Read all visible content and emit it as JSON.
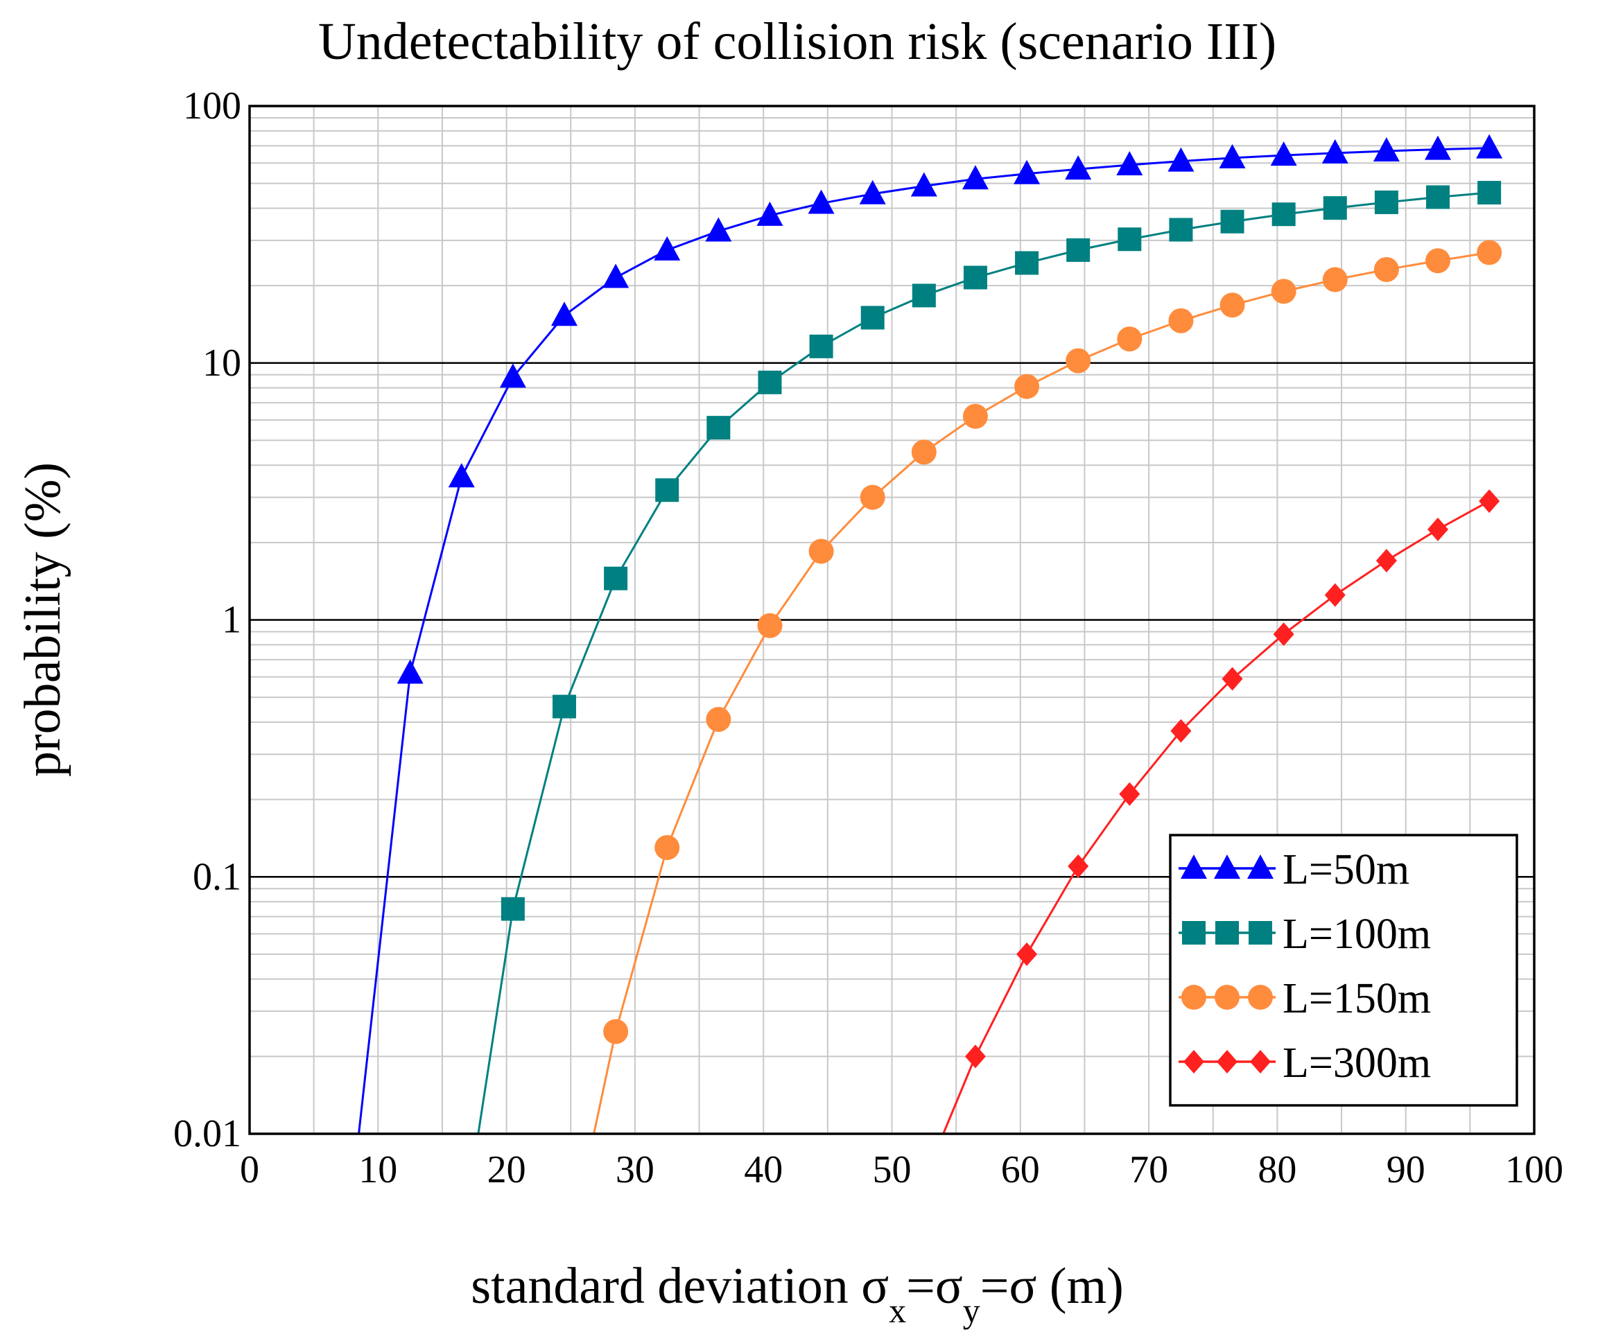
{
  "chart_data": {
    "type": "line",
    "title": "Undetectability of collision risk (scenario III)",
    "xlabel_main": "standard deviation σ",
    "xlabel_sub_x": "x",
    "xlabel_eq1": "=σ",
    "xlabel_sub_y": "y",
    "xlabel_end": "=σ (m)",
    "ylabel": "probability (%)",
    "xlim": [
      0,
      100
    ],
    "ylim": [
      0.01,
      100
    ],
    "yscale": "log",
    "grid": true,
    "legend_position": "bottom-right",
    "x_ticks": [
      "0",
      "10",
      "20",
      "30",
      "40",
      "50",
      "60",
      "70",
      "80",
      "90",
      "100"
    ],
    "y_ticks": [
      {
        "value": 100,
        "label": "100"
      },
      {
        "value": 10,
        "label": "10"
      },
      {
        "value": 1,
        "label": "1"
      },
      {
        "value": 0.1,
        "label": "0.1"
      },
      {
        "value": 0.01,
        "label": "0.01"
      }
    ],
    "series": [
      {
        "name": "L=50m",
        "color": "#0000ff",
        "marker": "triangle",
        "line_start": [
          8.5,
          0.01
        ],
        "x": [
          12.5,
          16.5,
          20.5,
          24.5,
          28.5,
          32.5,
          36.5,
          40.5,
          44.5,
          48.5,
          52.5,
          56.5,
          60.5,
          64.5,
          68.5,
          72.5,
          76.5,
          80.5,
          84.5,
          88.5,
          92.5,
          96.5
        ],
        "y": [
          0.62,
          3.6,
          8.8,
          15.3,
          21.5,
          27.5,
          32.6,
          37.5,
          41.8,
          45.5,
          48.8,
          52.0,
          54.5,
          56.8,
          59.0,
          61.0,
          62.8,
          64.3,
          65.6,
          66.8,
          67.8,
          68.6
        ]
      },
      {
        "name": "L=100m",
        "color": "#008080",
        "marker": "square",
        "line_start": [
          17.8,
          0.01
        ],
        "x": [
          20.5,
          24.5,
          28.5,
          32.5,
          36.5,
          40.5,
          44.5,
          48.5,
          52.5,
          56.5,
          60.5,
          64.5,
          68.5,
          72.5,
          76.5,
          80.5,
          84.5,
          88.5,
          92.5,
          96.5
        ],
        "y": [
          0.075,
          0.46,
          1.45,
          3.2,
          5.6,
          8.4,
          11.6,
          15.0,
          18.3,
          21.5,
          24.5,
          27.5,
          30.3,
          33.0,
          35.5,
          37.9,
          40.1,
          42.2,
          44.2,
          46.0
        ]
      },
      {
        "name": "L=150m",
        "color": "#ff8c3c",
        "marker": "circle",
        "line_start": [
          26.8,
          0.01
        ],
        "x": [
          28.5,
          32.5,
          36.5,
          40.5,
          44.5,
          48.5,
          52.5,
          56.5,
          60.5,
          64.5,
          68.5,
          72.5,
          76.5,
          80.5,
          84.5,
          88.5,
          92.5,
          96.5
        ],
        "y": [
          0.025,
          0.13,
          0.41,
          0.95,
          1.85,
          3.0,
          4.5,
          6.2,
          8.1,
          10.2,
          12.4,
          14.6,
          16.8,
          19.0,
          21.1,
          23.1,
          25.0,
          26.9
        ]
      },
      {
        "name": "L=300m",
        "color": "#ff2020",
        "marker": "diamond",
        "line_start": [
          54.0,
          0.01
        ],
        "x": [
          56.5,
          60.5,
          64.5,
          68.5,
          72.5,
          76.5,
          80.5,
          84.5,
          88.5,
          92.5,
          96.5
        ],
        "y": [
          0.02,
          0.05,
          0.11,
          0.21,
          0.37,
          0.59,
          0.88,
          1.25,
          1.7,
          2.25,
          2.9
        ]
      }
    ]
  }
}
